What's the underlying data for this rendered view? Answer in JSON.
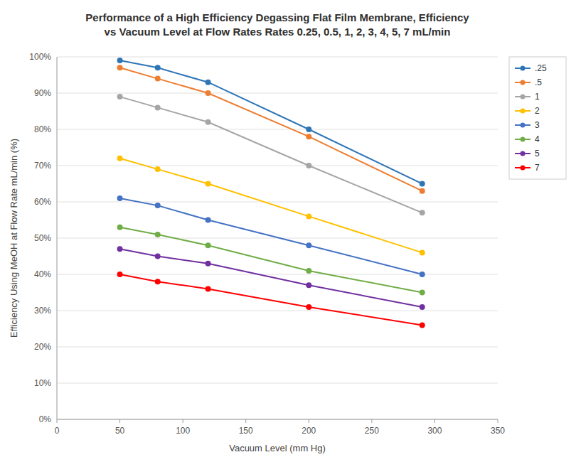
{
  "chart_data": {
    "type": "line",
    "title": "Performance of a High Efficiency Degassing Flat Film Membrane, Efficiency\nvs Vacuum Level at Flow Rates Rates 0.25, 0.5, 1, 2, 3, 4, 5, 7 mL/min",
    "x_label": "Vacuum Level (mm Hg)",
    "y_label": "Efficiency Using MeOH at Flow Rate mL/min (%)",
    "x": [
      50,
      80,
      120,
      200,
      290
    ],
    "series": [
      {
        "name": ".25",
        "color": "#2E75B6",
        "values": [
          0.99,
          0.97,
          0.93,
          0.8,
          0.65
        ]
      },
      {
        "name": ".5",
        "color": "#ED7D31",
        "values": [
          0.97,
          0.94,
          0.9,
          0.78,
          0.63
        ]
      },
      {
        "name": "1",
        "color": "#A5A5A5",
        "values": [
          0.89,
          0.86,
          0.82,
          0.7,
          0.57
        ]
      },
      {
        "name": "2",
        "color": "#FFC000",
        "values": [
          0.72,
          0.69,
          0.65,
          0.56,
          0.46
        ]
      },
      {
        "name": "3",
        "color": "#4472C4",
        "values": [
          0.61,
          0.59,
          0.55,
          0.48,
          0.4
        ]
      },
      {
        "name": "4",
        "color": "#70AD47",
        "values": [
          0.53,
          0.51,
          0.48,
          0.41,
          0.35
        ]
      },
      {
        "name": "5",
        "color": "#7030A0",
        "values": [
          0.47,
          0.45,
          0.43,
          0.37,
          0.31
        ]
      },
      {
        "name": "7",
        "color": "#FF0000",
        "values": [
          0.4,
          0.38,
          0.36,
          0.31,
          0.26
        ]
      }
    ],
    "xlim": [
      0,
      350
    ],
    "ylim": [
      0,
      1.0
    ],
    "xticks": [
      0,
      50,
      100,
      150,
      200,
      250,
      300,
      350
    ],
    "yticks": [
      {
        "value": 0.0,
        "label": "0%"
      },
      {
        "value": 0.1,
        "label": "10%"
      },
      {
        "value": 0.2,
        "label": "20%"
      },
      {
        "value": 0.3,
        "label": "30%"
      },
      {
        "value": 0.4,
        "label": "40%"
      },
      {
        "value": 0.5,
        "label": "50%"
      },
      {
        "value": 0.6,
        "label": "60%"
      },
      {
        "value": 0.7,
        "label": "70%"
      },
      {
        "value": 0.8,
        "label": "80%"
      },
      {
        "value": 0.9,
        "label": "90%"
      },
      {
        "value": 1.0,
        "label": "100%"
      }
    ],
    "grid": true,
    "legend": "upper right",
    "marker": "circle"
  }
}
